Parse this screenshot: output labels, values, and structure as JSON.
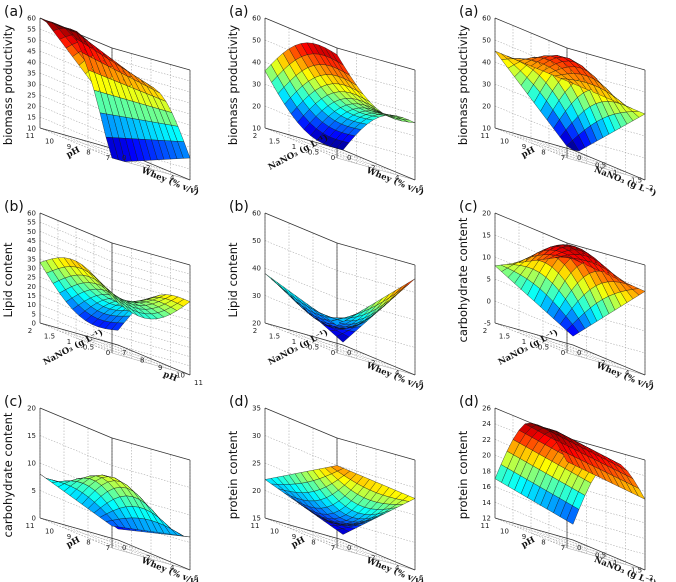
{
  "colors": {
    "colormap": "jet"
  },
  "chart_data": [
    {
      "type": "surface",
      "label": "(a)",
      "zlabel": "biomass productivity",
      "xlabel": "Whey (% v/v)",
      "ylabel": "pH",
      "xticks": [
        "0",
        "2",
        "4",
        "6"
      ],
      "yticks": [
        "7",
        "8",
        "9",
        "10",
        "11"
      ],
      "zticks": [
        "10",
        "15",
        "20",
        "25",
        "30",
        "35",
        "40",
        "45",
        "50",
        "55",
        "60"
      ],
      "xlim": [
        0,
        6
      ],
      "ylim": [
        7,
        11
      ],
      "zlim": [
        10,
        60
      ],
      "surface": {
        "kind": "ridge",
        "corners": [
          25,
          20,
          8,
          62
        ]
      }
    },
    {
      "type": "surface",
      "label": "(a)",
      "zlabel": "biomass productivity",
      "xlabel": "Whey (% v/v)",
      "ylabel": "NaNO₃ (g L⁻¹)",
      "xticks": [
        "0",
        "2",
        "4",
        "6"
      ],
      "yticks": [
        "0",
        "0.5",
        "1",
        "1.5",
        "2"
      ],
      "zticks": [
        "10",
        "20",
        "30",
        "40",
        "50",
        "60"
      ],
      "xlim": [
        0,
        6
      ],
      "ylim": [
        0,
        2
      ],
      "zlim": [
        10,
        60
      ],
      "surface": {
        "kind": "saddle",
        "corners": [
          10,
          36,
          57,
          36
        ]
      }
    },
    {
      "type": "surface",
      "label": "(a)",
      "zlabel": "biomass productivity",
      "xlabel": "NaNO₃ (g L⁻¹)",
      "ylabel": "pH",
      "xticks": [
        "0",
        "0.5",
        "1",
        "1.5",
        "2"
      ],
      "yticks": [
        "7",
        "8",
        "9",
        "10",
        "11"
      ],
      "zticks": [
        "10",
        "20",
        "30",
        "40",
        "50",
        "60"
      ],
      "xlim": [
        0,
        2
      ],
      "ylim": [
        7,
        11
      ],
      "zlim": [
        10,
        60
      ],
      "surface": {
        "kind": "dome",
        "corners": [
          8,
          40,
          45,
          45
        ]
      }
    },
    {
      "type": "surface",
      "label": "(b)",
      "zlabel": "Lipid content",
      "xlabel": "pH",
      "ylabel": "NaNO₃ (g L⁻¹)",
      "xticks": [
        "7",
        "8",
        "9",
        "10",
        "11"
      ],
      "yticks": [
        "0",
        "0.5",
        "1",
        "1.5",
        "2"
      ],
      "zticks": [
        "0",
        "5",
        "10",
        "15",
        "20",
        "25",
        "30",
        "35",
        "40",
        "45",
        "50",
        "55",
        "60"
      ],
      "xlim": [
        7,
        11
      ],
      "ylim": [
        0,
        2
      ],
      "zlim": [
        0,
        60
      ],
      "surface": {
        "kind": "saddle",
        "corners": [
          8,
          40,
          30,
          33
        ]
      }
    },
    {
      "type": "surface",
      "label": "(b)",
      "zlabel": "Lipid content",
      "xlabel": "Whey (% v/v)",
      "ylabel": "NaNO₃ (g L⁻¹)",
      "xticks": [
        "0",
        "2",
        "4",
        "6"
      ],
      "yticks": [
        "0",
        "0.5",
        "1",
        "1.5",
        "2"
      ],
      "zticks": [
        "20",
        "30",
        "40",
        "50",
        "60"
      ],
      "xlim": [
        0,
        6
      ],
      "ylim": [
        0,
        2
      ],
      "zlim": [
        20,
        60
      ],
      "surface": {
        "kind": "bowl",
        "corners": [
          21,
          55,
          30,
          38
        ]
      }
    },
    {
      "type": "surface",
      "label": "(c)",
      "zlabel": "carbohydrate content",
      "xlabel": "Whey (% v/v)",
      "ylabel": "NaNO₃ (g L⁻¹)",
      "xticks": [
        "0",
        "2",
        "4",
        "6"
      ],
      "yticks": [
        "0",
        "0.5",
        "1",
        "1.5",
        "2"
      ],
      "zticks": [
        "-5",
        "0",
        "5",
        "10",
        "15",
        "20"
      ],
      "xlim": [
        0,
        6
      ],
      "ylim": [
        0,
        2
      ],
      "zlim": [
        -5,
        20
      ],
      "surface": {
        "kind": "dome",
        "corners": [
          -3,
          14,
          17,
          8
        ]
      }
    },
    {
      "type": "surface",
      "label": "(c)",
      "zlabel": "carbohydrate content",
      "xlabel": "Whey (% v/v)",
      "ylabel": "pH",
      "xticks": [
        "0",
        "2",
        "4",
        "6"
      ],
      "yticks": [
        "7",
        "8",
        "9",
        "10",
        "11"
      ],
      "zticks": [
        "0",
        "5",
        "10",
        "15",
        "20"
      ],
      "xlim": [
        0,
        6
      ],
      "ylim": [
        7,
        11
      ],
      "zlim": [
        0,
        20
      ],
      "surface": {
        "kind": "dome",
        "corners": [
          2,
          6,
          4,
          8
        ]
      }
    },
    {
      "type": "surface",
      "label": "(d)",
      "zlabel": "protein content",
      "xlabel": "Whey (% v/v)",
      "ylabel": "pH",
      "xticks": [
        "0",
        "2",
        "4",
        "6"
      ],
      "yticks": [
        "7",
        "8",
        "9",
        "10",
        "11"
      ],
      "zticks": [
        "15",
        "20",
        "25",
        "30",
        "35"
      ],
      "xlim": [
        0,
        6
      ],
      "ylim": [
        7,
        11
      ],
      "zlim": [
        15,
        35
      ],
      "surface": {
        "kind": "bowl",
        "corners": [
          16,
          28,
          30,
          22
        ]
      }
    },
    {
      "type": "surface",
      "label": "(d)",
      "zlabel": "protein content",
      "xlabel": "NaNO₃ (g L⁻¹)",
      "ylabel": "pH",
      "xticks": [
        "0",
        "0.5",
        "1",
        "1.5",
        "2"
      ],
      "yticks": [
        "7",
        "8",
        "9",
        "10",
        "11"
      ],
      "zticks": [
        "12",
        "14",
        "16",
        "18",
        "20",
        "22",
        "24",
        "26"
      ],
      "xlim": [
        0,
        2
      ],
      "ylim": [
        7,
        11
      ],
      "zlim": [
        12,
        26
      ],
      "surface": {
        "kind": "ridge",
        "corners": [
          14,
          21,
          23,
          17
        ]
      }
    }
  ]
}
